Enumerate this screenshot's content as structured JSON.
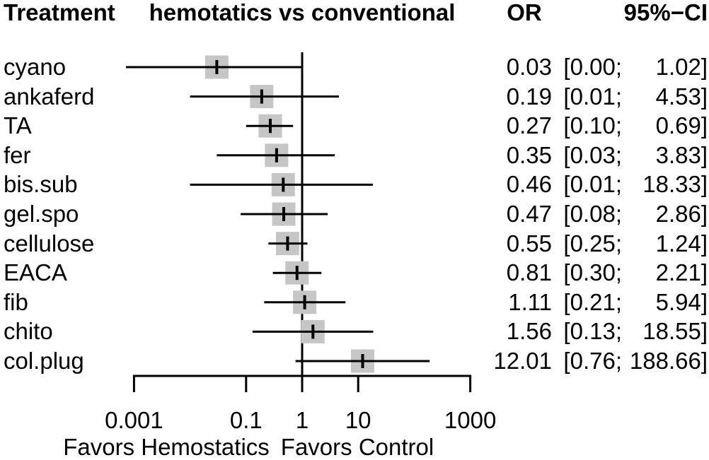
{
  "header": {
    "treatment": "Treatment",
    "comparison": "hemotatics vs conventional",
    "or": "OR",
    "ci": "95%−CI"
  },
  "footer": {
    "favors_left": "Favors Hemostatics",
    "favors_right": "Favors Control"
  },
  "chart_data": {
    "type": "scatter",
    "subtype": "forest_plot",
    "x_scale": "log10",
    "xlim": [
      0.001,
      1000
    ],
    "reference_line": 1,
    "axis_ticks": [
      0.001,
      0.1,
      1,
      10,
      1000
    ],
    "tick_labels": [
      "0.001",
      "0.1",
      "1",
      "10",
      "1000"
    ],
    "grid": false,
    "colors": {
      "square": "#c6c6c6",
      "line": "#000000",
      "text": "#000000",
      "background": "#ffffff"
    },
    "rows": [
      {
        "label": "cyano",
        "or": 0.03,
        "lower": 0.0,
        "upper": 1.02,
        "or_text": "0.03",
        "ci_lower_text": "[0.00;",
        "ci_upper_text": "1.02]"
      },
      {
        "label": "ankaferd",
        "or": 0.19,
        "lower": 0.01,
        "upper": 4.53,
        "or_text": "0.19",
        "ci_lower_text": "[0.01;",
        "ci_upper_text": "4.53]"
      },
      {
        "label": "TA",
        "or": 0.27,
        "lower": 0.1,
        "upper": 0.69,
        "or_text": "0.27",
        "ci_lower_text": "[0.10;",
        "ci_upper_text": "0.69]"
      },
      {
        "label": "fer",
        "or": 0.35,
        "lower": 0.03,
        "upper": 3.83,
        "or_text": "0.35",
        "ci_lower_text": "[0.03;",
        "ci_upper_text": "3.83]"
      },
      {
        "label": "bis.sub",
        "or": 0.46,
        "lower": 0.01,
        "upper": 18.33,
        "or_text": "0.46",
        "ci_lower_text": "[0.01;",
        "ci_upper_text": "18.33]"
      },
      {
        "label": "gel.spo",
        "or": 0.47,
        "lower": 0.08,
        "upper": 2.86,
        "or_text": "0.47",
        "ci_lower_text": "[0.08;",
        "ci_upper_text": "2.86]"
      },
      {
        "label": "cellulose",
        "or": 0.55,
        "lower": 0.25,
        "upper": 1.24,
        "or_text": "0.55",
        "ci_lower_text": "[0.25;",
        "ci_upper_text": "1.24]"
      },
      {
        "label": "EACA",
        "or": 0.81,
        "lower": 0.3,
        "upper": 2.21,
        "or_text": "0.81",
        "ci_lower_text": "[0.30;",
        "ci_upper_text": "2.21]"
      },
      {
        "label": "fib",
        "or": 1.11,
        "lower": 0.21,
        "upper": 5.94,
        "or_text": "1.11",
        "ci_lower_text": "[0.21;",
        "ci_upper_text": "5.94]"
      },
      {
        "label": "chito",
        "or": 1.56,
        "lower": 0.13,
        "upper": 18.55,
        "or_text": "1.56",
        "ci_lower_text": "[0.13;",
        "ci_upper_text": "18.55]"
      },
      {
        "label": "col.plug",
        "or": 12.01,
        "lower": 0.76,
        "upper": 188.66,
        "or_text": "12.01",
        "ci_lower_text": "[0.76;",
        "ci_upper_text": "188.66]"
      }
    ]
  }
}
